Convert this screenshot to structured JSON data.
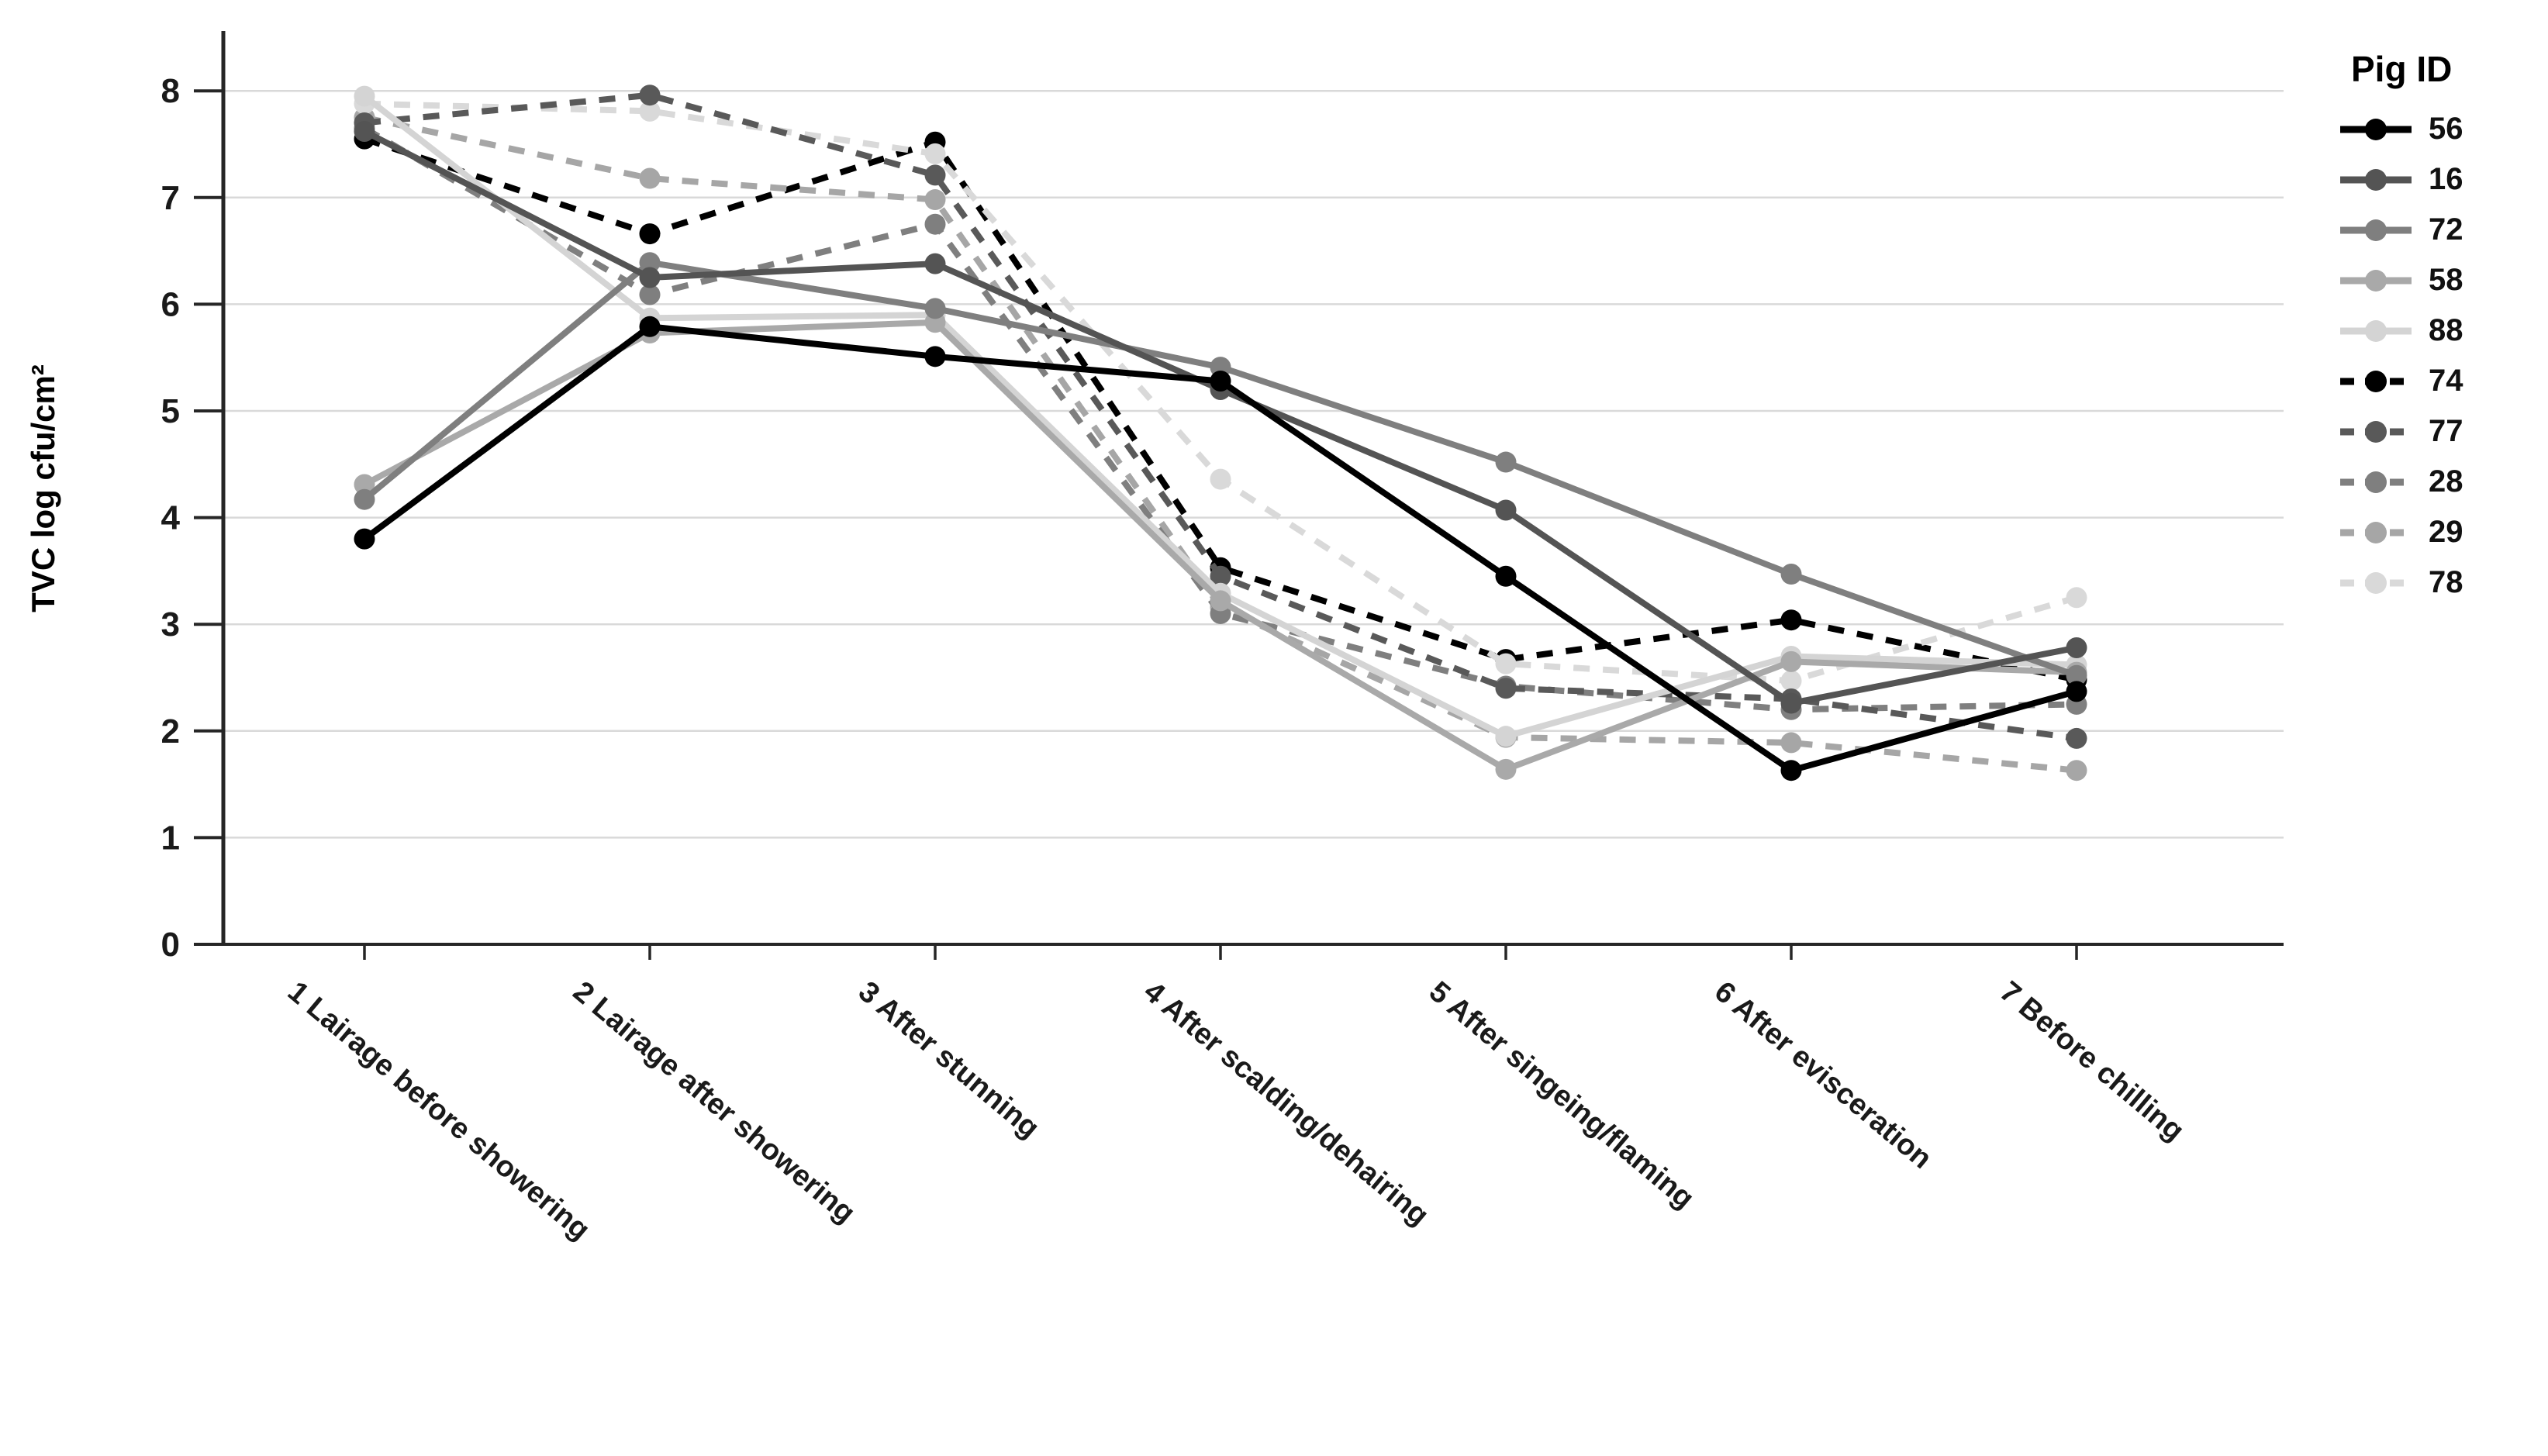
{
  "chart_data": {
    "type": "line",
    "title": "",
    "ylabel": "TVC log cfu/cm²",
    "xlabel": "",
    "legend_title": "Pig ID",
    "legend_position": "right",
    "grid": true,
    "ylim": [
      0,
      8
    ],
    "yticks": [
      0,
      1,
      2,
      3,
      4,
      5,
      6,
      7,
      8
    ],
    "categories": [
      "1 Lairage before showering",
      "2 Lairage after showering",
      "3 After stunning",
      "4 After scalding/dehairing",
      "5 After singeing/flaming",
      "6 After evisceration",
      "7 Before chilling"
    ],
    "series": [
      {
        "name": "56",
        "color": "#000000",
        "dash": false,
        "values": [
          3.8,
          5.79,
          5.51,
          5.28,
          3.45,
          1.63,
          2.37
        ]
      },
      {
        "name": "16",
        "color": "#545454",
        "dash": false,
        "values": [
          7.62,
          6.25,
          6.38,
          5.2,
          4.07,
          2.26,
          2.78
        ]
      },
      {
        "name": "72",
        "color": "#7f7f7f",
        "dash": false,
        "values": [
          4.17,
          6.39,
          5.96,
          5.41,
          4.52,
          3.47,
          2.52
        ]
      },
      {
        "name": "58",
        "color": "#a9a9a9",
        "dash": false,
        "values": [
          4.31,
          5.73,
          5.83,
          3.22,
          1.64,
          2.65,
          2.55
        ]
      },
      {
        "name": "88",
        "color": "#d4d4d4",
        "dash": false,
        "values": [
          7.95,
          5.87,
          5.9,
          3.29,
          1.95,
          2.7,
          2.62
        ]
      },
      {
        "name": "74",
        "color": "#000000",
        "dash": true,
        "values": [
          7.55,
          6.66,
          7.52,
          3.53,
          2.67,
          3.04,
          2.48
        ]
      },
      {
        "name": "77",
        "color": "#595959",
        "dash": true,
        "values": [
          7.7,
          7.96,
          7.21,
          3.45,
          2.4,
          2.3,
          1.93
        ]
      },
      {
        "name": "28",
        "color": "#7f7f7f",
        "dash": true,
        "values": [
          7.65,
          6.09,
          6.75,
          3.1,
          2.42,
          2.2,
          2.25
        ]
      },
      {
        "name": "29",
        "color": "#a6a6a6",
        "dash": true,
        "values": [
          7.75,
          7.18,
          6.98,
          3.16,
          1.94,
          1.89,
          1.63
        ]
      },
      {
        "name": "78",
        "color": "#d9d9d9",
        "dash": true,
        "values": [
          7.88,
          7.81,
          7.41,
          4.36,
          2.63,
          2.47,
          3.25
        ]
      }
    ],
    "draw_order": [
      "74",
      "29",
      "78",
      "28",
      "77",
      "88",
      "58",
      "72",
      "16",
      "56"
    ],
    "axis_color": "#262626",
    "grid_color": "#d9d9d9"
  },
  "layout_note": ""
}
